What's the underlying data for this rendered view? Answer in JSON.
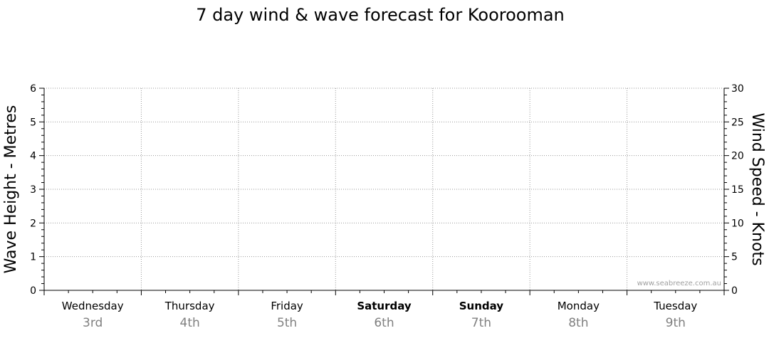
{
  "chart_data": {
    "type": "line",
    "title": "7 day wind & wave forecast for Koorooman",
    "ylabel_left": "Wave Height - Metres",
    "ylabel_right": "Wind Speed - Knots",
    "ylim_left": [
      0,
      6
    ],
    "ylim_right": [
      0,
      30
    ],
    "yticks_left": [
      "0",
      "1",
      "2",
      "3",
      "4",
      "5",
      "6"
    ],
    "yticks_right": [
      "0",
      "5",
      "10",
      "15",
      "20",
      "25",
      "30"
    ],
    "days": [
      {
        "day": "Wednesday",
        "date": "3rd",
        "bold": false
      },
      {
        "day": "Thursday",
        "date": "4th",
        "bold": false
      },
      {
        "day": "Friday",
        "date": "5th",
        "bold": false
      },
      {
        "day": "Saturday",
        "date": "6th",
        "bold": true
      },
      {
        "day": "Sunday",
        "date": "7th",
        "bold": true
      },
      {
        "day": "Monday",
        "date": "8th",
        "bold": false
      },
      {
        "day": "Tuesday",
        "date": "9th",
        "bold": false
      }
    ],
    "series": [],
    "grid": true,
    "watermark": "www.seabreeze.com.au"
  }
}
